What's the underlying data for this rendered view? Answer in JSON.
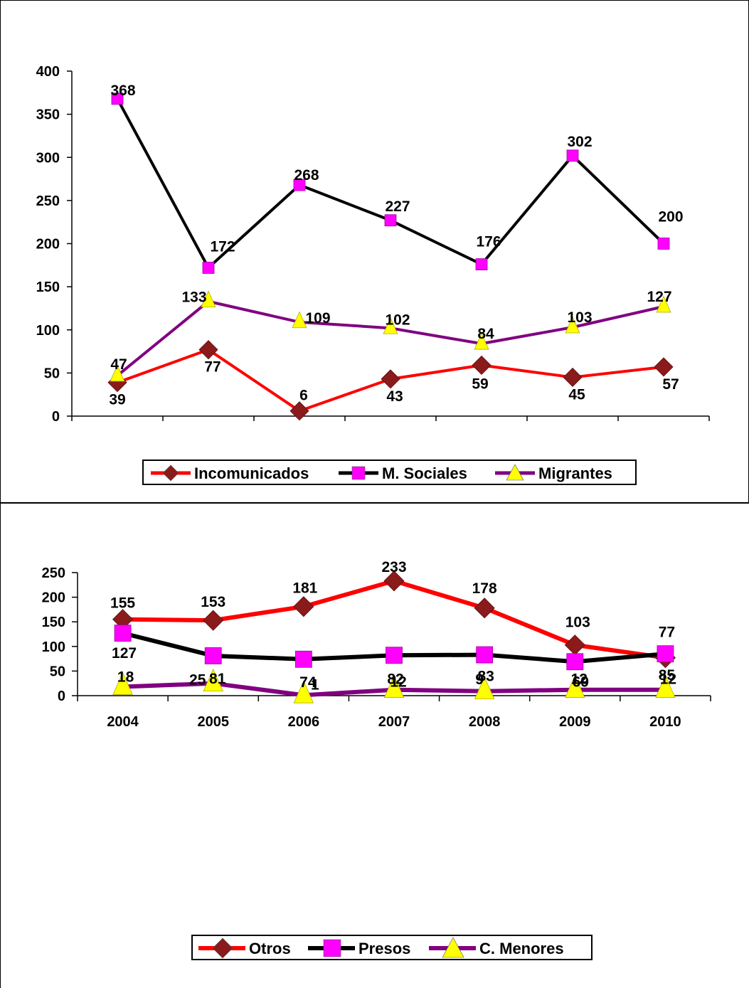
{
  "colors": {
    "dark_red": "#8B1A1A",
    "red": "#FF0000",
    "black": "#000000",
    "magenta": "#FF00FF",
    "purple": "#800080",
    "yellow": "#FFFF00"
  },
  "chart_data": [
    {
      "type": "line",
      "title": "",
      "xlabel": "",
      "ylabel": "",
      "categories": [
        "2004",
        "2005",
        "2006",
        "2007",
        "2008",
        "2009",
        "2010"
      ],
      "show_category_labels": false,
      "ylim": [
        0,
        400
      ],
      "yticks": [
        "0",
        "50",
        "100",
        "150",
        "200",
        "250",
        "300",
        "350",
        "400"
      ],
      "grid": false,
      "legend_position": "bottom",
      "series": [
        {
          "name": "Incomunicados",
          "values": [
            39,
            77,
            6,
            43,
            59,
            45,
            57
          ],
          "labels": [
            "39",
            "77",
            "6",
            "43",
            "59",
            "45",
            "57"
          ],
          "line_color": "#FF0000",
          "marker": "diamond",
          "marker_color": "#8B1A1A"
        },
        {
          "name": "M. Sociales",
          "values": [
            368,
            172,
            268,
            227,
            176,
            302,
            200
          ],
          "labels": [
            "368",
            "172",
            "268",
            "227",
            "176",
            "302",
            "200"
          ],
          "line_color": "#000000",
          "marker": "square",
          "marker_color": "#FF00FF"
        },
        {
          "name": "Migrantes",
          "values": [
            47,
            133,
            109,
            102,
            84,
            103,
            127
          ],
          "labels": [
            "47",
            "133",
            "109",
            "102",
            "84",
            "103",
            "127"
          ],
          "line_color": "#800080",
          "marker": "triangle",
          "marker_color": "#FFFF00"
        }
      ]
    },
    {
      "type": "line",
      "title": "",
      "xlabel": "",
      "ylabel": "",
      "categories": [
        "2004",
        "2005",
        "2006",
        "2007",
        "2008",
        "2009",
        "2010"
      ],
      "show_category_labels": true,
      "ylim": [
        0,
        250
      ],
      "yticks": [
        "0",
        "50",
        "100",
        "150",
        "200",
        "250"
      ],
      "grid": false,
      "legend_position": "bottom",
      "series": [
        {
          "name": "Otros",
          "values": [
            155,
            153,
            181,
            233,
            178,
            103,
            77
          ],
          "labels": [
            "155",
            "153",
            "181",
            "233",
            "178",
            "103",
            "77"
          ],
          "line_color": "#FF0000",
          "marker": "diamond",
          "marker_color": "#8B1A1A"
        },
        {
          "name": "Presos",
          "values": [
            127,
            81,
            74,
            82,
            83,
            69,
            85
          ],
          "labels": [
            "127",
            "81",
            "74",
            "82",
            "83",
            "69",
            "85"
          ],
          "line_color": "#000000",
          "marker": "square",
          "marker_color": "#FF00FF"
        },
        {
          "name": "C. Menores",
          "values": [
            18,
            25,
            1,
            12,
            9,
            12,
            12
          ],
          "labels": [
            "18",
            "25",
            "1",
            "12",
            "9",
            "12",
            "12"
          ],
          "line_color": "#800080",
          "marker": "triangle",
          "marker_color": "#FFFF00"
        }
      ]
    }
  ]
}
